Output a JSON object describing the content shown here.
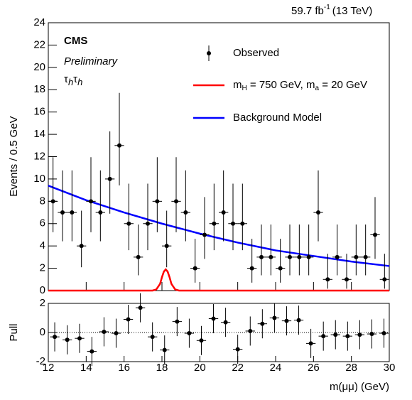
{
  "chart_data": {
    "type": "cms_fit",
    "lumi": "59.7 fb",
    "lumi_exp": "-1",
    "energy": "(13 TeV)",
    "experiment": "CMS",
    "status": "Preliminary",
    "channel": [
      "τ",
      "h",
      "τ",
      "h"
    ],
    "ylabel": "Events / 0.5 GeV",
    "pull_label": "Pull",
    "xlabel": "m(μμ) (GeV)",
    "xlim": [
      12,
      30
    ],
    "xticks": [
      12,
      14,
      16,
      18,
      20,
      22,
      24,
      26,
      28,
      30
    ],
    "ylim": [
      0,
      24
    ],
    "yticks": [
      0,
      2,
      4,
      6,
      8,
      10,
      12,
      14,
      16,
      18,
      20,
      22,
      24
    ],
    "pull_ylim": [
      -2,
      2
    ],
    "pull_yticks": [
      -2,
      0,
      2
    ],
    "observed": {
      "name": "Observed",
      "color": "#000000",
      "x_err": 0.25,
      "x": [
        12.25,
        12.75,
        13.25,
        13.75,
        14.25,
        14.75,
        15.25,
        15.75,
        16.25,
        16.75,
        17.25,
        17.75,
        18.25,
        18.75,
        19.25,
        19.75,
        20.25,
        20.75,
        21.25,
        21.75,
        22.25,
        22.75,
        23.25,
        23.75,
        24.25,
        24.75,
        25.25,
        25.75,
        26.25,
        26.75,
        27.25,
        27.75,
        28.25,
        28.75,
        29.25,
        29.75
      ],
      "values": [
        8,
        7,
        7,
        4,
        8,
        7,
        10,
        13,
        6,
        3,
        6,
        8,
        4,
        8,
        7,
        2,
        5,
        6,
        7,
        6,
        6,
        2,
        3,
        3,
        2,
        3,
        3,
        3,
        7,
        1,
        3,
        1,
        3,
        3,
        5,
        1
      ],
      "errors_low": [
        2.77,
        2.58,
        2.58,
        1.91,
        2.77,
        2.58,
        3.11,
        3.58,
        2.38,
        1.63,
        2.38,
        2.77,
        1.91,
        2.77,
        2.58,
        1.29,
        2.16,
        2.38,
        2.58,
        2.38,
        2.38,
        1.29,
        1.63,
        1.63,
        1.29,
        1.63,
        1.63,
        1.63,
        2.58,
        0.83,
        1.63,
        0.83,
        1.63,
        1.63,
        2.16,
        0.83
      ],
      "errors_high": [
        3.95,
        3.77,
        3.77,
        3.16,
        3.95,
        3.77,
        4.27,
        4.71,
        3.58,
        2.92,
        3.58,
        3.95,
        3.16,
        3.95,
        3.77,
        2.64,
        3.38,
        3.58,
        3.77,
        3.58,
        3.58,
        2.64,
        2.92,
        2.92,
        2.64,
        2.92,
        2.92,
        2.92,
        3.77,
        2.3,
        2.92,
        2.3,
        2.92,
        2.92,
        3.38,
        2.3
      ]
    },
    "series": [
      {
        "name_parts": [
          "m",
          "H",
          " = 750 GeV, m",
          "a",
          " = 20 GeV"
        ],
        "color": "#ff0000",
        "x": [
          12,
          17.5,
          17.7,
          17.9,
          18.0,
          18.1,
          18.2,
          18.3,
          18.4,
          18.5,
          18.7,
          18.9,
          30
        ],
        "values": [
          0,
          0,
          0.1,
          0.6,
          1.2,
          1.7,
          1.9,
          1.7,
          1.2,
          0.6,
          0.1,
          0,
          0
        ]
      },
      {
        "name": "Background Model",
        "color": "#0000ff",
        "x": [
          12,
          14,
          16,
          18,
          20,
          22,
          24,
          26,
          28,
          30
        ],
        "values": [
          9.4,
          8.1,
          7.0,
          6.0,
          5.1,
          4.3,
          3.6,
          3.1,
          2.6,
          2.2
        ]
      }
    ],
    "pulls": {
      "x_err": 0.25,
      "x": [
        12.34,
        13.0,
        13.65,
        14.3,
        14.94,
        15.58,
        16.22,
        16.86,
        17.5,
        18.14,
        18.8,
        19.44,
        20.08,
        20.72,
        21.36,
        22.0,
        22.66,
        23.3,
        23.94,
        24.58,
        25.22,
        25.86,
        26.52,
        27.16,
        27.8,
        28.44,
        29.08,
        29.72
      ],
      "values": [
        -0.3,
        -0.5,
        -0.4,
        -1.3,
        0.05,
        -0.05,
        0.9,
        1.7,
        -0.3,
        -1.2,
        0.75,
        -0.05,
        -0.55,
        0.95,
        0.7,
        -1.15,
        0.1,
        0.6,
        1.0,
        0.8,
        0.85,
        -0.75,
        -0.25,
        -0.15,
        -0.25,
        -0.15,
        -0.1,
        -0.05
      ],
      "errors": [
        1,
        1,
        1,
        1,
        1,
        1,
        1,
        1,
        1,
        1,
        1,
        1,
        1,
        1,
        1,
        1,
        1,
        1,
        1,
        1,
        1,
        1,
        1,
        1,
        1,
        1,
        1,
        1
      ]
    }
  }
}
